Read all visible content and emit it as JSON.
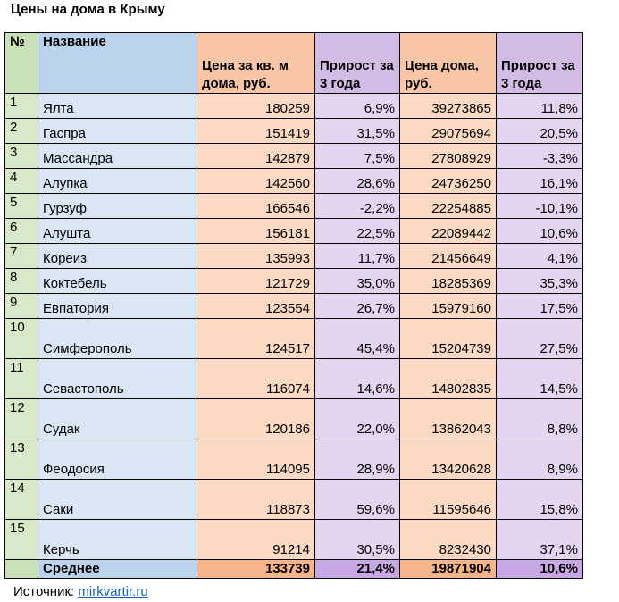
{
  "title": "Цены на дома в Крыму",
  "headers": {
    "no": "№",
    "name": "Название",
    "price_sqm": "Цена за кв. м дома, руб.",
    "growth_sqm": "Прирост за 3 года",
    "price_house": "Цена дома, руб.",
    "growth_house": "Прирост за 3 года"
  },
  "rows": [
    {
      "no": "1",
      "name": "Ялта",
      "price_sqm": "180259",
      "growth_sqm": "6,9%",
      "price_house": "39273865",
      "growth_house": "11,8%"
    },
    {
      "no": "2",
      "name": "Гаспра",
      "price_sqm": "151419",
      "growth_sqm": "31,5%",
      "price_house": "29075694",
      "growth_house": "20,5%"
    },
    {
      "no": "3",
      "name": "Массандра",
      "price_sqm": "142879",
      "growth_sqm": "7,5%",
      "price_house": "27808929",
      "growth_house": "-3,3%"
    },
    {
      "no": "4",
      "name": "Алупка",
      "price_sqm": "142560",
      "growth_sqm": "28,6%",
      "price_house": "24736250",
      "growth_house": "16,1%"
    },
    {
      "no": "5",
      "name": "Гурзуф",
      "price_sqm": "166546",
      "growth_sqm": "-2,2%",
      "price_house": "22254885",
      "growth_house": "-10,1%"
    },
    {
      "no": "6",
      "name": "Алушта",
      "price_sqm": "156181",
      "growth_sqm": "22,5%",
      "price_house": "22089442",
      "growth_house": "10,6%"
    },
    {
      "no": "7",
      "name": "Кореиз",
      "price_sqm": "135993",
      "growth_sqm": "11,7%",
      "price_house": "21456649",
      "growth_house": "4,1%"
    },
    {
      "no": "8",
      "name": "Коктебель",
      "price_sqm": "121729",
      "growth_sqm": "35,0%",
      "price_house": "18285369",
      "growth_house": "35,3%"
    },
    {
      "no": "9",
      "name": "Евпатория",
      "price_sqm": "123554",
      "growth_sqm": "26,7%",
      "price_house": "15979160",
      "growth_house": "17,5%"
    },
    {
      "no": "10",
      "name": "Симферополь",
      "price_sqm": "124517",
      "growth_sqm": "45,4%",
      "price_house": "15204739",
      "growth_house": "27,5%"
    },
    {
      "no": "11",
      "name": "Севастополь",
      "price_sqm": "116074",
      "growth_sqm": "14,6%",
      "price_house": "14802835",
      "growth_house": "14,5%"
    },
    {
      "no": "12",
      "name": "Судак",
      "price_sqm": "120186",
      "growth_sqm": "22,0%",
      "price_house": "13862043",
      "growth_house": "8,8%"
    },
    {
      "no": "13",
      "name": "Феодосия",
      "price_sqm": "114095",
      "growth_sqm": "28,9%",
      "price_house": "13420628",
      "growth_house": "8,9%"
    },
    {
      "no": "14",
      "name": "Саки",
      "price_sqm": "118873",
      "growth_sqm": "59,6%",
      "price_house": "11595646",
      "growth_house": "15,8%"
    },
    {
      "no": "15",
      "name": "Керчь",
      "price_sqm": "91214",
      "growth_sqm": "30,5%",
      "price_house": "8232430",
      "growth_house": "37,1%"
    }
  ],
  "footer": {
    "label": "Среднее",
    "price_sqm": "133739",
    "growth_sqm": "21,4%",
    "price_house": "19871904",
    "growth_house": "10,6%"
  },
  "source": {
    "label": "Источник: ",
    "link": "mirkvartir.ru"
  }
}
